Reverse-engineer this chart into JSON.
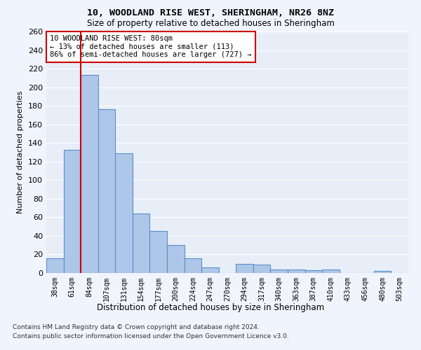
{
  "title1": "10, WOODLAND RISE WEST, SHERINGHAM, NR26 8NZ",
  "title2": "Size of property relative to detached houses in Sheringham",
  "xlabel": "Distribution of detached houses by size in Sheringham",
  "ylabel": "Number of detached properties",
  "categories": [
    "38sqm",
    "61sqm",
    "84sqm",
    "107sqm",
    "131sqm",
    "154sqm",
    "177sqm",
    "200sqm",
    "224sqm",
    "247sqm",
    "270sqm",
    "294sqm",
    "317sqm",
    "340sqm",
    "363sqm",
    "387sqm",
    "410sqm",
    "433sqm",
    "456sqm",
    "480sqm",
    "503sqm"
  ],
  "values": [
    16,
    133,
    213,
    176,
    129,
    64,
    45,
    30,
    16,
    6,
    0,
    10,
    9,
    4,
    4,
    3,
    4,
    0,
    0,
    2,
    0
  ],
  "bar_color": "#aec6e8",
  "bar_edge_color": "#5b8fc9",
  "red_line_x": 1.5,
  "annotation_text": "10 WOODLAND RISE WEST: 80sqm\n← 13% of detached houses are smaller (113)\n86% of semi-detached houses are larger (727) →",
  "annotation_box_color": "#ffffff",
  "annotation_box_edge": "#cc0000",
  "red_line_color": "#cc0000",
  "ylim": [
    0,
    260
  ],
  "yticks": [
    0,
    20,
    40,
    60,
    80,
    100,
    120,
    140,
    160,
    180,
    200,
    220,
    240,
    260
  ],
  "footnote1": "Contains HM Land Registry data © Crown copyright and database right 2024.",
  "footnote2": "Contains public sector information licensed under the Open Government Licence v3.0.",
  "fig_bg_color": "#f0f4fc",
  "plot_bg_color": "#e8eef8"
}
